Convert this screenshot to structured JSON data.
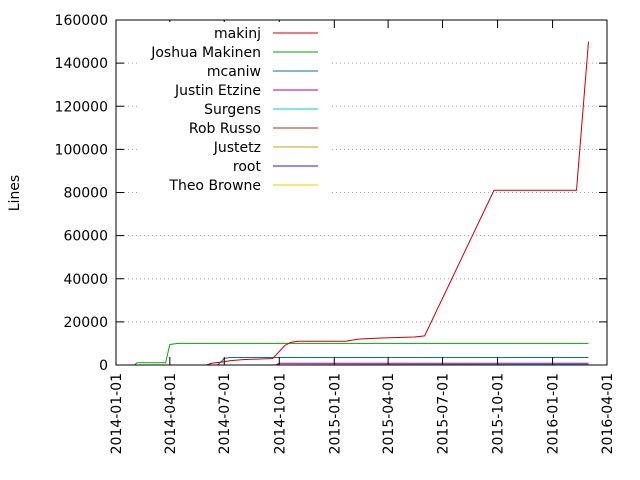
{
  "chart_data": {
    "type": "line",
    "ylabel": "Lines",
    "xlabel": "",
    "title": "",
    "ylim": [
      0,
      160000
    ],
    "xlim": [
      "2014-01-01",
      "2016-04-01"
    ],
    "grid": "horizontal dotted lines at y ticks",
    "legend_position": "top-left",
    "y_ticks": [
      "0",
      "20000",
      "40000",
      "60000",
      "80000",
      "100000",
      "120000",
      "140000",
      "160000"
    ],
    "x_ticks": [
      "2014-01-01",
      "2014-04-01",
      "2014-07-01",
      "2014-10-01",
      "2015-01-01",
      "2015-04-01",
      "2015-07-01",
      "2015-10-01",
      "2016-01-01",
      "2016-04-01"
    ],
    "series": [
      {
        "name": "makinj",
        "color": "#cc0000",
        "points": [
          [
            "2014-06-01",
            0
          ],
          [
            "2014-06-10",
            800
          ],
          [
            "2014-07-01",
            1500
          ],
          [
            "2014-07-10",
            2000
          ],
          [
            "2014-08-01",
            2500
          ],
          [
            "2014-09-20",
            3000
          ],
          [
            "2014-10-10",
            9000
          ],
          [
            "2014-10-20",
            10500
          ],
          [
            "2014-11-01",
            11000
          ],
          [
            "2015-01-20",
            11000
          ],
          [
            "2015-02-10",
            12000
          ],
          [
            "2015-03-20",
            12500
          ],
          [
            "2015-05-15",
            13000
          ],
          [
            "2015-06-01",
            13500
          ],
          [
            "2015-09-25",
            81000
          ],
          [
            "2016-02-10",
            81000
          ],
          [
            "2016-03-01",
            150000
          ]
        ]
      },
      {
        "name": "Joshua Makinen",
        "color": "#00aa00",
        "points": [
          [
            "2014-02-01",
            0
          ],
          [
            "2014-02-05",
            1000
          ],
          [
            "2014-03-25",
            1000
          ],
          [
            "2014-04-01",
            9500
          ],
          [
            "2014-04-15",
            10000
          ],
          [
            "2016-03-01",
            10000
          ]
        ]
      },
      {
        "name": "mcaniw",
        "color": "#0077aa",
        "points": [
          [
            "2014-06-20",
            0
          ],
          [
            "2014-07-01",
            3000
          ],
          [
            "2014-07-10",
            3500
          ],
          [
            "2016-03-01",
            3500
          ]
        ]
      },
      {
        "name": "Justin Etzine",
        "color": "#aa00aa",
        "points": [
          [
            "2014-09-25",
            0
          ],
          [
            "2014-10-01",
            800
          ],
          [
            "2016-03-01",
            800
          ]
        ]
      },
      {
        "name": "Surgens",
        "color": "#00cccc",
        "points": [
          [
            "2014-09-01",
            0
          ],
          [
            "2016-03-01",
            300
          ]
        ]
      },
      {
        "name": "Rob Russo",
        "color": "#a03010",
        "points": [
          [
            "2014-09-01",
            0
          ],
          [
            "2016-03-01",
            200
          ]
        ]
      },
      {
        "name": "Justetz",
        "color": "#c8a000",
        "points": [
          [
            "2014-09-01",
            0
          ],
          [
            "2016-03-01",
            100
          ]
        ]
      },
      {
        "name": "root",
        "color": "#2020cc",
        "points": [
          [
            "2014-01-20",
            0
          ],
          [
            "2016-03-01",
            100
          ]
        ]
      },
      {
        "name": "Theo Browne",
        "color": "#f0c800",
        "points": [
          [
            "2014-09-01",
            0
          ],
          [
            "2016-03-01",
            50
          ]
        ]
      }
    ]
  }
}
